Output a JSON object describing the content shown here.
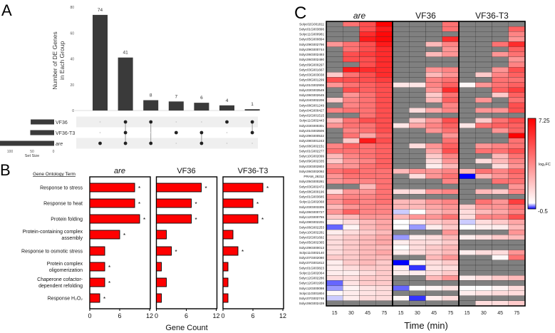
{
  "panel_labels": {
    "a": "A",
    "b": "B",
    "c": "C"
  },
  "chart_data": [
    {
      "type": "bar",
      "subtype": "upset",
      "title": "",
      "ylabel_lines": [
        "Number of DE Genes",
        "in Each Group"
      ],
      "ylim": [
        0,
        80
      ],
      "yticks": [
        "0",
        "20",
        "40",
        "60",
        "80"
      ],
      "sets": [
        "VF36",
        "VF36-T3",
        "are"
      ],
      "set_sizes": [
        54,
        55,
        129
      ],
      "set_size_label": "Set Size",
      "set_size_ticks": [
        "100",
        "50",
        "0"
      ],
      "intersections": [
        {
          "sets": [
            "are"
          ],
          "value": 74,
          "label": "74"
        },
        {
          "sets": [
            "VF36",
            "VF36-T3",
            "are"
          ],
          "value": 41,
          "label": "41"
        },
        {
          "sets": [
            "VF36",
            "are"
          ],
          "value": 8,
          "label": "8"
        },
        {
          "sets": [
            "VF36-T3"
          ],
          "value": 7,
          "label": "7"
        },
        {
          "sets": [
            "VF36-T3",
            "are"
          ],
          "value": 6,
          "label": "6"
        },
        {
          "sets": [
            "VF36"
          ],
          "value": 4,
          "label": "4"
        },
        {
          "sets": [
            "VF36",
            "VF36-T3"
          ],
          "value": 1,
          "label": "1"
        }
      ],
      "bar_color": "#3a3a3a"
    },
    {
      "type": "bar",
      "orientation": "horizontal",
      "category_header": "Gene Ontology Term",
      "categories": [
        [
          "Response to stress"
        ],
        [
          "Response to heat"
        ],
        [
          "Protein folding"
        ],
        [
          "Protein-containing complex",
          "assembly"
        ],
        [
          "Response to osmotic stress"
        ],
        [
          "Protein complex",
          "oligomerization"
        ],
        [
          "Chaperone cofactor-",
          "dependent refolding"
        ],
        [
          "Response H₂O₂"
        ]
      ],
      "xlabel": "Gene Count",
      "xlim": [
        0,
        12
      ],
      "xticks": [
        "0",
        "6",
        "12"
      ],
      "significance_mark": "*",
      "bar_color": "#ff0000",
      "panels": [
        {
          "name": "are",
          "italic": true,
          "values": [
            9,
            9,
            10,
            6,
            3,
            3,
            3,
            2
          ],
          "significant": [
            true,
            true,
            true,
            true,
            false,
            true,
            true,
            true
          ]
        },
        {
          "name": "VF36",
          "italic": false,
          "values": [
            9,
            7,
            7,
            2,
            3,
            1,
            2,
            1
          ],
          "significant": [
            true,
            true,
            true,
            false,
            true,
            false,
            false,
            false
          ]
        },
        {
          "name": "VF36-T3",
          "italic": false,
          "values": [
            8,
            6,
            7,
            2,
            3,
            1,
            1,
            1
          ],
          "significant": [
            true,
            true,
            true,
            false,
            true,
            false,
            false,
            false
          ]
        }
      ]
    },
    {
      "type": "heatmap",
      "groups": [
        {
          "name": "are",
          "italic": true
        },
        {
          "name": "VF36",
          "italic": false
        },
        {
          "name": "VF36-T3",
          "italic": false
        }
      ],
      "timepoints": [
        "15",
        "30",
        "45",
        "75"
      ],
      "xlabel": "Time (min)",
      "colorbar": {
        "max": 7.25,
        "min": -0.5,
        "max_label": "7.25",
        "min_label": "-0.5",
        "label": "log₂FC",
        "high_color": "#ff0000",
        "mid_color": "#ffffff",
        "low_color": "#0000ff",
        "missing_color": "#808080"
      },
      "rows": [
        "Solyc02G001811",
        "Solyc01G003896",
        "Solyc11G000981",
        "Solyc05G000894",
        "Solyc09G002796",
        "Solyc09G000744",
        "Solyc06G002493",
        "Solyc06G002490",
        "Solyc09G000297",
        "Solyc03G001667",
        "Solyc03G003038",
        "Solyc08G001299",
        "Solyc01G002906",
        "Solyc03G003549",
        "Solyc06G002645",
        "Solyc04G002206",
        "Solyc08G001249",
        "Solyc04G000427",
        "Solyc02G001515",
        "Solyc11G002443",
        "Solyc03G000301",
        "Solyc01G003506",
        "Solyc09G000532",
        "Solyc08G001243",
        "Solyc08G002151",
        "Solyc01G002277",
        "Solyc10G002099",
        "Solyc09G002335",
        "Solyc03G002803",
        "Solyc06G002092",
        "PRAM_26312",
        "Solyc05G000281",
        "Solyc03G002472",
        "Solyc08G000196",
        "Solyc01G003685",
        "Solyc11G002068",
        "Solyc03G003305",
        "Solyc06G000727",
        "Solyc12G000755",
        "Solyc08G002201",
        "Solyc06G002253",
        "Solyc10G002281",
        "Solyc02G001692",
        "Solyc05G002365",
        "Solyc09G000013",
        "Solyc11G002140",
        "Solyc07G002080",
        "Solyc07G001812",
        "Solyc01G003823",
        "Solyc11G002064",
        "Solyc12G002286",
        "Solyc12G001950",
        "Solyc12G000098",
        "Solyc11G001804",
        "Solyc07G002746",
        "Solyc06G002439"
      ],
      "values": [
        [
          null,
          4,
          5,
          7.2,
          null,
          null,
          null,
          4,
          null,
          null,
          null,
          null
        ],
        [
          null,
          null,
          5,
          6.5,
          null,
          null,
          null,
          4,
          null,
          null,
          null,
          4.5
        ],
        [
          null,
          null,
          6,
          7,
          null,
          null,
          null,
          null,
          null,
          null,
          null,
          3.5
        ],
        [
          null,
          null,
          6.5,
          7,
          null,
          null,
          null,
          6,
          null,
          null,
          null,
          3
        ],
        [
          3,
          4,
          5,
          6.5,
          null,
          null,
          2,
          3.5,
          null,
          null,
          4,
          6
        ],
        [
          null,
          4,
          5,
          6,
          null,
          null,
          null,
          3,
          null,
          null,
          null,
          4.5
        ],
        [
          null,
          5,
          5.5,
          6,
          null,
          null,
          2,
          3,
          null,
          null,
          3,
          4
        ],
        [
          null,
          5,
          5,
          6,
          null,
          null,
          null,
          null,
          null,
          null,
          null,
          3
        ],
        [
          null,
          null,
          5,
          6,
          null,
          null,
          null,
          null,
          null,
          null,
          null,
          3.5
        ],
        [
          null,
          6.5,
          6,
          6,
          null,
          null,
          3,
          3.5,
          null,
          null,
          3,
          5
        ],
        [
          1.5,
          4,
          5,
          6,
          null,
          null,
          2,
          3,
          null,
          1.5,
          3.5,
          4.5
        ],
        [
          5,
          5,
          5,
          5.5,
          null,
          null,
          3.5,
          4,
          null,
          null,
          4,
          4
        ],
        [
          3,
          4,
          4.5,
          5,
          0.7,
          0.7,
          3.5,
          4.5,
          0.2,
          3,
          4,
          4.5
        ],
        [
          null,
          5,
          4.5,
          5,
          null,
          null,
          3,
          6,
          null,
          null,
          4.5,
          5.5
        ],
        [
          null,
          3,
          4,
          5,
          null,
          null,
          1.5,
          4,
          null,
          null,
          1.5,
          4.5
        ],
        [
          1.5,
          3.5,
          4,
          5,
          null,
          null,
          2,
          4.5,
          null,
          3,
          null,
          4
        ],
        [
          null,
          3.5,
          4,
          5,
          null,
          null,
          null,
          3.5,
          null,
          null,
          null,
          5
        ],
        [
          3.5,
          4,
          4,
          5,
          null,
          1,
          2.5,
          3.5,
          null,
          3,
          3,
          5
        ],
        [
          null,
          null,
          4,
          5,
          null,
          null,
          null,
          null,
          null,
          null,
          null,
          null
        ],
        [
          2,
          4,
          5,
          5,
          null,
          1.5,
          3,
          5,
          null,
          1.5,
          4,
          5
        ],
        [
          3,
          4,
          4,
          5,
          0.7,
          2.5,
          3.5,
          4.5,
          0.7,
          4,
          4.5,
          4.5
        ],
        [
          null,
          3.5,
          4,
          5,
          null,
          null,
          3,
          4,
          null,
          null,
          3,
          4.5
        ],
        [
          null,
          4,
          2.5,
          4.5,
          null,
          null,
          null,
          3,
          null,
          null,
          null,
          7.2
        ],
        [
          null,
          1.5,
          6.5,
          5,
          null,
          null,
          null,
          4,
          null,
          null,
          null,
          4
        ],
        [
          3.5,
          4.5,
          4,
          4.5,
          null,
          1,
          3,
          4.5,
          null,
          3,
          3.5,
          4
        ],
        [
          4,
          4,
          4,
          4.5,
          null,
          null,
          2.5,
          5,
          null,
          4,
          4,
          5
        ],
        [
          2,
          3.5,
          4,
          4.5,
          null,
          null,
          1.5,
          3.5,
          null,
          null,
          2,
          4
        ],
        [
          1.5,
          3,
          3.5,
          4.5,
          null,
          null,
          1,
          3,
          null,
          1,
          2,
          3.5
        ],
        [
          3,
          3,
          4,
          4.5,
          null,
          null,
          0.5,
          2,
          null,
          null,
          1,
          3
        ],
        [
          4,
          4.5,
          4,
          4,
          2,
          3,
          3,
          3.5,
          2,
          4,
          3.5,
          4.5
        ],
        [
          3,
          4,
          4,
          4,
          null,
          1,
          3,
          4,
          -0.5,
          2,
          3,
          4
        ],
        [
          3,
          3.5,
          3.5,
          4,
          null,
          null,
          null,
          3.5,
          null,
          null,
          4,
          4
        ],
        [
          null,
          null,
          2,
          4,
          null,
          null,
          null,
          null,
          null,
          null,
          null,
          3
        ],
        [
          1,
          3,
          3,
          4,
          1,
          1,
          3,
          3.5,
          null,
          2,
          1.5,
          3.5
        ],
        [
          3,
          3.5,
          3.5,
          4,
          null,
          null,
          null,
          null,
          null,
          null,
          null,
          null
        ],
        [
          3,
          4,
          3.5,
          4,
          2,
          2,
          3,
          3.5,
          null,
          4,
          3,
          5.5
        ],
        [
          2,
          3,
          3.5,
          3.5,
          2,
          2,
          2.5,
          3,
          1.5,
          3,
          3,
          4
        ],
        [
          3,
          4.5,
          3.5,
          3.5,
          -0.1,
          0,
          2,
          2.5,
          1,
          2,
          2.5,
          3.5
        ],
        [
          1.5,
          2,
          3,
          3,
          2,
          3,
          3,
          4,
          1,
          3.5,
          3.5,
          5
        ],
        [
          0.5,
          1,
          2,
          2.5,
          0,
          0.5,
          1.5,
          2,
          -0.1,
          1,
          1.5,
          2.5
        ],
        [
          -0.3,
          0.3,
          2,
          2.5,
          0,
          -0.2,
          0.5,
          1.5,
          0,
          0.5,
          0.5,
          2
        ],
        [
          0.5,
          1,
          1.5,
          2,
          null,
          null,
          null,
          3,
          null,
          null,
          null,
          3
        ],
        [
          1,
          1.5,
          2,
          2.5,
          -0.2,
          0.5,
          1,
          2,
          0.5,
          1,
          1.5,
          2
        ],
        [
          1,
          1.5,
          2,
          2.5,
          0.5,
          1,
          1,
          1.5,
          null,
          null,
          null,
          null
        ],
        [
          1,
          1.5,
          2,
          2,
          0,
          1,
          1.5,
          2,
          null,
          null,
          null,
          null
        ],
        [
          1,
          1.5,
          2,
          2.5,
          0.5,
          1,
          1.5,
          2,
          0.5,
          1,
          1,
          3
        ],
        [
          1.5,
          1.5,
          2,
          2,
          null,
          null,
          2,
          3,
          null,
          null,
          0.2,
          4
        ],
        [
          0.5,
          1.5,
          2,
          1.5,
          -0.5,
          0.3,
          1,
          1.5,
          null,
          null,
          null,
          null
        ],
        [
          0.5,
          1,
          1.5,
          1.5,
          0.5,
          -0.4,
          0.8,
          1,
          null,
          null,
          null,
          null
        ],
        [
          0.5,
          0.5,
          1,
          1.5,
          0.5,
          0.5,
          1,
          1.5,
          null,
          null,
          null,
          null
        ],
        [
          1,
          1,
          1.5,
          1.5,
          null,
          null,
          2,
          3,
          0.5,
          1,
          1.5,
          2
        ],
        [
          -0.3,
          0.8,
          1.5,
          1.5,
          null,
          null,
          null,
          null,
          null,
          null,
          null,
          null
        ],
        [
          -0.2,
          0.3,
          0.8,
          1,
          -0.3,
          0,
          0.3,
          0.8,
          0,
          0,
          0.3,
          1
        ],
        [
          0.2,
          0.5,
          0.8,
          1,
          null,
          null,
          null,
          null,
          0.5,
          0.8,
          1,
          1
        ],
        [
          -0.1,
          0.5,
          1,
          1,
          0.2,
          -0.4,
          0.5,
          1,
          null,
          null,
          null,
          null
        ],
        [
          null,
          null,
          null,
          null,
          null,
          null,
          null,
          null,
          null,
          1,
          1,
          1.5
        ]
      ]
    }
  ]
}
